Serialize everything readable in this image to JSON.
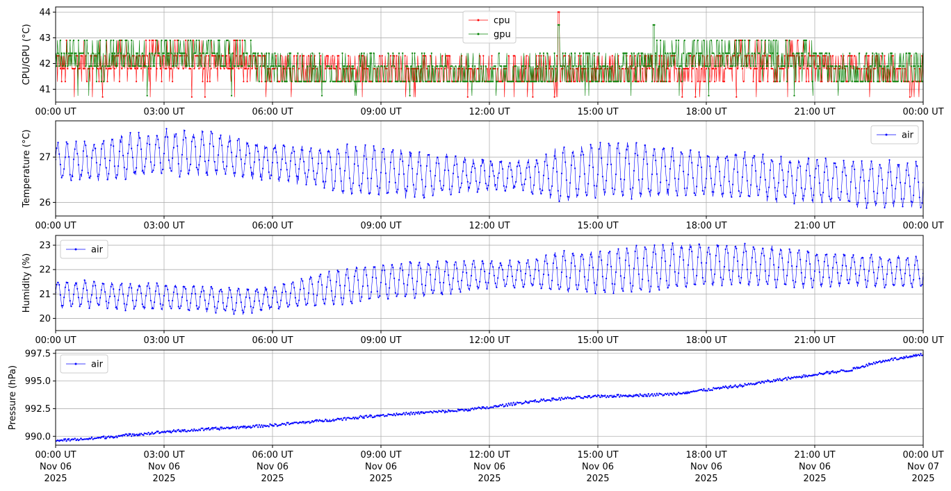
{
  "chart_data": [
    {
      "type": "line",
      "ylabel": "CPU/GPU (°C)",
      "xlim": [
        "2025-11-06T00:00Z",
        "2025-11-07T00:00Z"
      ],
      "ylim": [
        40.5,
        44.2
      ],
      "yticks": [
        41,
        42,
        43,
        44
      ],
      "grid": true,
      "legend_placement": "top-center",
      "x_tick_labels": [
        "00:00 UT",
        "03:00 UT",
        "06:00 UT",
        "09:00 UT",
        "12:00 UT",
        "15:00 UT",
        "18:00 UT",
        "21:00 UT",
        "00:00 UT"
      ],
      "series": [
        {
          "name": "cpu",
          "color": "#ff0000",
          "sampling_minutes": 60,
          "values": [
            42.0,
            42.0,
            42.1,
            42.2,
            42.1,
            42.0,
            41.9,
            41.8,
            41.7,
            41.6,
            41.6,
            41.6,
            41.5,
            41.6,
            41.6,
            41.6,
            41.7,
            41.8,
            41.9,
            42.0,
            42.0,
            42.0,
            41.8,
            41.6,
            41.6
          ],
          "max_point": {
            "time": "13:55 UT",
            "value": 44.0
          }
        },
        {
          "name": "gpu",
          "color": "#008000",
          "sampling_minutes": 60,
          "values": [
            42.3,
            42.2,
            42.3,
            42.4,
            42.3,
            42.3,
            41.8,
            41.6,
            41.6,
            41.6,
            41.6,
            41.5,
            41.6,
            41.6,
            41.7,
            41.7,
            41.9,
            42.2,
            42.3,
            42.3,
            42.2,
            42.0,
            41.8,
            41.8,
            41.8
          ],
          "max_point": {
            "time": "13:55 UT",
            "value": 43.5
          }
        }
      ]
    },
    {
      "type": "line",
      "ylabel": "Temperature (°C)",
      "xlim": [
        "2025-11-06T00:00Z",
        "2025-11-07T00:00Z"
      ],
      "ylim": [
        25.7,
        27.8
      ],
      "yticks": [
        26,
        27
      ],
      "grid": true,
      "legend_placement": "top-right",
      "x_tick_labels": [
        "00:00 UT",
        "03:00 UT",
        "06:00 UT",
        "09:00 UT",
        "12:00 UT",
        "15:00 UT",
        "18:00 UT",
        "21:00 UT",
        "00:00 UT"
      ],
      "series": [
        {
          "name": "air",
          "color": "#0000ff",
          "sampling_minutes": 60,
          "mean": [
            26.9,
            26.9,
            27.0,
            27.1,
            27.1,
            27.0,
            26.9,
            26.8,
            26.7,
            26.7,
            26.6,
            26.6,
            26.6,
            26.6,
            26.6,
            26.7,
            26.7,
            26.7,
            26.6,
            26.6,
            26.5,
            26.5,
            26.4,
            26.4,
            26.4
          ],
          "amplitude": [
            0.35,
            0.4,
            0.45,
            0.45,
            0.45,
            0.4,
            0.35,
            0.35,
            0.5,
            0.5,
            0.45,
            0.4,
            0.3,
            0.3,
            0.55,
            0.55,
            0.55,
            0.5,
            0.45,
            0.45,
            0.45,
            0.45,
            0.45,
            0.45,
            0.45
          ],
          "oscillation_period_minutes": 15
        }
      ]
    },
    {
      "type": "line",
      "ylabel": "Humidity (%)",
      "xlim": [
        "2025-11-06T00:00Z",
        "2025-11-07T00:00Z"
      ],
      "ylim": [
        19.5,
        23.4
      ],
      "yticks": [
        20,
        21,
        22,
        23
      ],
      "grid": true,
      "legend_placement": "top-left",
      "x_tick_labels": [
        "00:00 UT",
        "03:00 UT",
        "06:00 UT",
        "09:00 UT",
        "12:00 UT",
        "15:00 UT",
        "18:00 UT",
        "21:00 UT",
        "00:00 UT"
      ],
      "series": [
        {
          "name": "air",
          "color": "#0000ff",
          "sampling_minutes": 60,
          "mean": [
            21.0,
            21.0,
            20.9,
            20.9,
            20.8,
            20.7,
            20.8,
            21.1,
            21.3,
            21.5,
            21.6,
            21.7,
            21.8,
            21.8,
            21.9,
            21.9,
            22.0,
            22.1,
            22.2,
            22.2,
            22.1,
            22.0,
            22.0,
            21.9,
            21.9
          ],
          "amplitude": [
            0.5,
            0.5,
            0.5,
            0.5,
            0.5,
            0.5,
            0.4,
            0.6,
            0.7,
            0.7,
            0.7,
            0.6,
            0.5,
            0.5,
            0.8,
            0.8,
            0.9,
            0.9,
            0.8,
            0.8,
            0.8,
            0.7,
            0.6,
            0.6,
            0.6
          ],
          "oscillation_period_minutes": 15
        }
      ]
    },
    {
      "type": "line",
      "ylabel": "Pressure (hPa)",
      "xlim": [
        "2025-11-06T00:00Z",
        "2025-11-07T00:00Z"
      ],
      "ylim": [
        989.2,
        997.8
      ],
      "yticks": [
        990.0,
        992.5,
        995.0,
        997.5
      ],
      "ytick_labels": [
        "990.0",
        "992.5",
        "995.0",
        "997.5"
      ],
      "grid": true,
      "legend_placement": "top-left",
      "x_tick_labels": [
        [
          "00:00 UT",
          "Nov 06",
          "2025"
        ],
        [
          "03:00 UT",
          "Nov 06",
          "2025"
        ],
        [
          "06:00 UT",
          "Nov 06",
          "2025"
        ],
        [
          "09:00 UT",
          "Nov 06",
          "2025"
        ],
        [
          "12:00 UT",
          "Nov 06",
          "2025"
        ],
        [
          "15:00 UT",
          "Nov 06",
          "2025"
        ],
        [
          "18:00 UT",
          "Nov 06",
          "2025"
        ],
        [
          "21:00 UT",
          "Nov 06",
          "2025"
        ],
        [
          "00:00 UT",
          "Nov 07",
          "2025"
        ]
      ],
      "series": [
        {
          "name": "air",
          "color": "#0000ff",
          "sampling_minutes": 60,
          "values": [
            989.6,
            989.8,
            990.1,
            990.4,
            990.6,
            990.8,
            991.0,
            991.3,
            991.6,
            991.9,
            992.1,
            992.3,
            992.6,
            993.1,
            993.4,
            993.6,
            993.7,
            993.8,
            994.2,
            994.6,
            995.1,
            995.6,
            996.0,
            996.5,
            996.9,
            997.1,
            997.4
          ],
          "values_time_hours": [
            0,
            1,
            2,
            3,
            4,
            5,
            6,
            7,
            8,
            9,
            10,
            11,
            12,
            13,
            14,
            15,
            16,
            17,
            18,
            19,
            20,
            21,
            22,
            22.5,
            23,
            23.5,
            24
          ]
        }
      ]
    }
  ]
}
